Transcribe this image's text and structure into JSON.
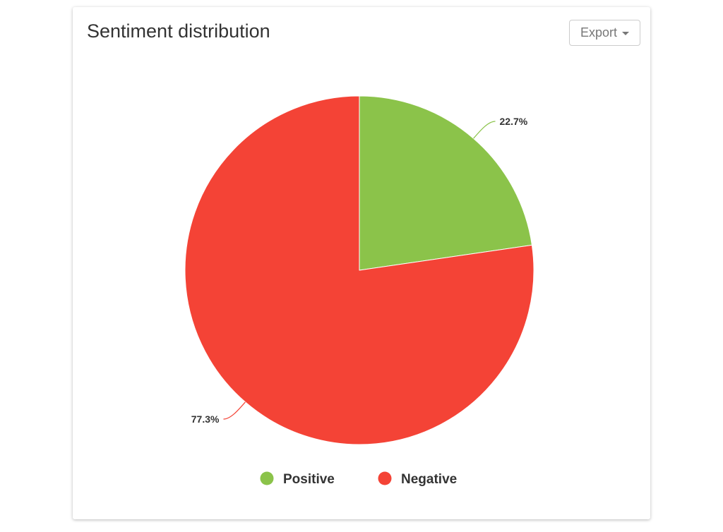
{
  "header": {
    "title": "Sentiment distribution",
    "export_label": "Export",
    "export_icon": "caret-down-icon"
  },
  "chart_data": {
    "type": "pie",
    "title": "Sentiment distribution",
    "categories": [
      "Positive",
      "Negative"
    ],
    "values": [
      22.7,
      77.3
    ],
    "labels": [
      "22.7%",
      "77.3%"
    ],
    "colors": [
      "#8bc34a",
      "#f44336"
    ],
    "legend": "bottom-center",
    "start_angle_deg": 0,
    "direction": "clockwise"
  }
}
